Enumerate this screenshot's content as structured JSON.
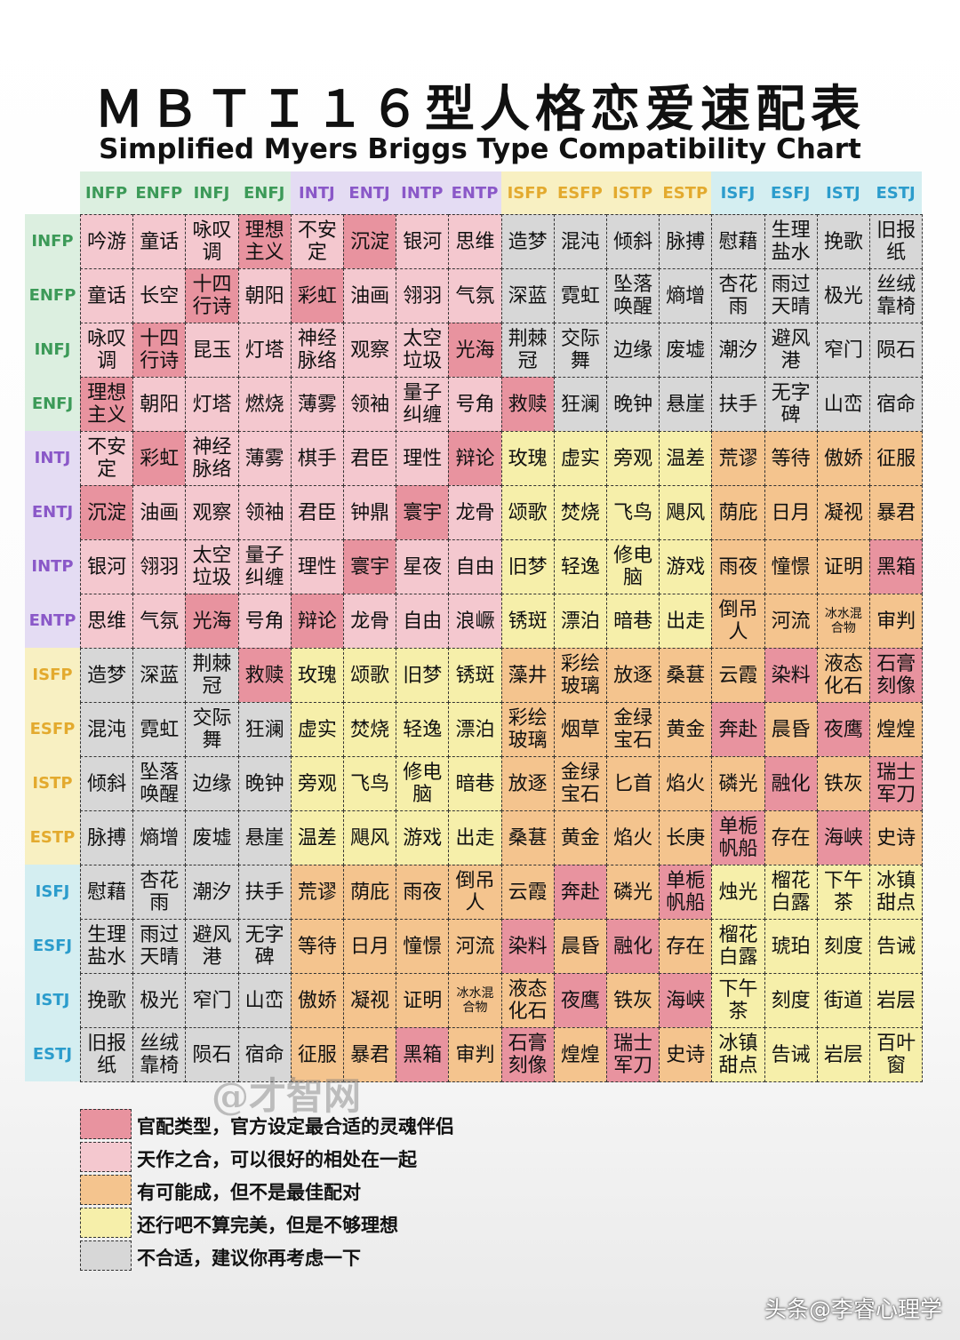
{
  "title": "ＭＢＴＩ１６型人格恋爱速配表",
  "subtitle": "Simplified Myers Briggs Type Compatibility Chart",
  "types": [
    "INFP",
    "ENFP",
    "INFJ",
    "ENFJ",
    "INTJ",
    "ENTJ",
    "INTP",
    "ENTP",
    "ISFP",
    "ESFP",
    "ISTP",
    "ESTP",
    "ISFJ",
    "ESFJ",
    "ISTJ",
    "ESTJ"
  ],
  "group_colors": {
    "nf": {
      "band": "#dcefe0",
      "text": "#3c9a58"
    },
    "nt": {
      "band": "#e4dcf3",
      "text": "#8a58c8"
    },
    "sp": {
      "band": "#f8f0c2",
      "text": "#e3aa2e"
    },
    "sj": {
      "band": "#d4eef1",
      "text": "#2b9ccc"
    }
  },
  "level_colors": {
    "1": "#e8939f",
    "2": "#f4c8cf",
    "3": "#f4c48e",
    "4": "#f6efaa",
    "5": "#d7d7d7"
  },
  "grid": [
    [
      "吟游",
      "童话",
      "咏叹调",
      "理想主义",
      "不安定",
      "沉淀",
      "银河",
      "思维",
      "造梦",
      "混沌",
      "倾斜",
      "脉搏",
      "慰藉",
      "生理盐水",
      "挽歌",
      "旧报纸"
    ],
    [
      "童话",
      "长空",
      "十四行诗",
      "朝阳",
      "彩虹",
      "油画",
      "翎羽",
      "气氛",
      "深蓝",
      "霓虹",
      "坠落唤醒",
      "熵增",
      "杏花雨",
      "雨过天晴",
      "极光",
      "丝绒靠椅"
    ],
    [
      "咏叹调",
      "十四行诗",
      "昆玉",
      "灯塔",
      "神经脉络",
      "观察",
      "太空垃圾",
      "光海",
      "荆棘冠",
      "交际舞",
      "边缘",
      "废墟",
      "潮汐",
      "避风港",
      "窄门",
      "陨石"
    ],
    [
      "理想主义",
      "朝阳",
      "灯塔",
      "燃烧",
      "薄雾",
      "领袖",
      "量子纠缠",
      "号角",
      "救赎",
      "狂澜",
      "晚钟",
      "悬崖",
      "扶手",
      "无字碑",
      "山峦",
      "宿命"
    ],
    [
      "不安定",
      "彩虹",
      "神经脉络",
      "薄雾",
      "棋手",
      "君臣",
      "理性",
      "辩论",
      "玫瑰",
      "虚实",
      "旁观",
      "温差",
      "荒谬",
      "等待",
      "傲娇",
      "征服"
    ],
    [
      "沉淀",
      "油画",
      "观察",
      "领袖",
      "君臣",
      "钟鼎",
      "寰宇",
      "龙骨",
      "颂歌",
      "焚烧",
      "飞鸟",
      "飓风",
      "荫庇",
      "日月",
      "凝视",
      "暴君"
    ],
    [
      "银河",
      "翎羽",
      "太空垃圾",
      "量子纠缠",
      "理性",
      "寰宇",
      "星夜",
      "自由",
      "旧梦",
      "轻逸",
      "修电脑",
      "游戏",
      "雨夜",
      "憧憬",
      "证明",
      "黑箱"
    ],
    [
      "思维",
      "气氛",
      "光海",
      "号角",
      "辩论",
      "龙骨",
      "自由",
      "浪嶥",
      "锈斑",
      "漂泊",
      "暗巷",
      "出走",
      "倒吊人",
      "河流",
      "冰水混合物",
      "审判"
    ],
    [
      "造梦",
      "深蓝",
      "荆棘冠",
      "救赎",
      "玫瑰",
      "颂歌",
      "旧梦",
      "锈斑",
      "藻井",
      "彩绘玻璃",
      "放逐",
      "桑葚",
      "云霞",
      "染料",
      "液态化石",
      "石膏刻像"
    ],
    [
      "混沌",
      "霓虹",
      "交际舞",
      "狂澜",
      "虚实",
      "焚烧",
      "轻逸",
      "漂泊",
      "彩绘玻璃",
      "烟草",
      "金绿宝石",
      "黄金",
      "奔赴",
      "晨昏",
      "夜鹰",
      "煌煌"
    ],
    [
      "倾斜",
      "坠落唤醒",
      "边缘",
      "晚钟",
      "旁观",
      "飞鸟",
      "修电脑",
      "暗巷",
      "放逐",
      "金绿宝石",
      "匕首",
      "焰火",
      "磷光",
      "融化",
      "铁灰",
      "瑞士军刀"
    ],
    [
      "脉搏",
      "熵增",
      "废墟",
      "悬崖",
      "温差",
      "飓风",
      "游戏",
      "出走",
      "桑葚",
      "黄金",
      "焰火",
      "长庚",
      "单栀帆船",
      "存在",
      "海峡",
      "史诗"
    ],
    [
      "慰藉",
      "杏花雨",
      "潮汐",
      "扶手",
      "荒谬",
      "荫庇",
      "雨夜",
      "倒吊人",
      "云霞",
      "奔赴",
      "磷光",
      "单栀帆船",
      "烛光",
      "榴花白露",
      "下午茶",
      "冰镇甜点"
    ],
    [
      "生理盐水",
      "雨过天晴",
      "避风港",
      "无字碑",
      "等待",
      "日月",
      "憧憬",
      "河流",
      "染料",
      "晨昏",
      "融化",
      "存在",
      "榴花白露",
      "琥珀",
      "刻度",
      "告诫"
    ],
    [
      "挽歌",
      "极光",
      "窄门",
      "山峦",
      "傲娇",
      "凝视",
      "证明",
      "冰水混合物",
      "液态化石",
      "夜鹰",
      "铁灰",
      "海峡",
      "下午茶",
      "刻度",
      "街道",
      "岩层"
    ],
    [
      "旧报纸",
      "丝绒靠椅",
      "陨石",
      "宿命",
      "征服",
      "暴君",
      "黑箱",
      "审判",
      "石膏刻像",
      "煌煌",
      "瑞士军刀",
      "史诗",
      "冰镇甜点",
      "告诫",
      "岩层",
      "百叶窗"
    ]
  ],
  "levels": [
    [
      2,
      2,
      2,
      1,
      2,
      1,
      2,
      2,
      5,
      5,
      5,
      5,
      5,
      5,
      5,
      5
    ],
    [
      2,
      2,
      1,
      2,
      1,
      2,
      2,
      2,
      5,
      5,
      5,
      5,
      5,
      5,
      5,
      5
    ],
    [
      2,
      1,
      2,
      2,
      2,
      2,
      2,
      1,
      5,
      5,
      5,
      5,
      5,
      5,
      5,
      5
    ],
    [
      1,
      2,
      2,
      2,
      2,
      2,
      2,
      2,
      1,
      5,
      5,
      5,
      5,
      5,
      5,
      5
    ],
    [
      2,
      1,
      2,
      2,
      2,
      2,
      2,
      1,
      4,
      4,
      4,
      4,
      3,
      3,
      3,
      3
    ],
    [
      1,
      2,
      2,
      2,
      2,
      2,
      1,
      2,
      4,
      4,
      4,
      4,
      3,
      3,
      3,
      3
    ],
    [
      2,
      2,
      2,
      2,
      2,
      1,
      2,
      2,
      4,
      4,
      4,
      4,
      3,
      3,
      3,
      1
    ],
    [
      2,
      2,
      1,
      2,
      1,
      2,
      2,
      2,
      4,
      4,
      4,
      4,
      3,
      3,
      3,
      3
    ],
    [
      5,
      5,
      5,
      1,
      4,
      4,
      4,
      4,
      3,
      3,
      3,
      3,
      3,
      1,
      3,
      1
    ],
    [
      5,
      5,
      5,
      5,
      4,
      4,
      4,
      4,
      3,
      3,
      3,
      3,
      1,
      3,
      1,
      3
    ],
    [
      5,
      5,
      5,
      5,
      4,
      4,
      4,
      4,
      3,
      3,
      3,
      3,
      3,
      1,
      3,
      1
    ],
    [
      5,
      5,
      5,
      5,
      4,
      4,
      4,
      4,
      3,
      3,
      3,
      3,
      1,
      3,
      1,
      3
    ],
    [
      5,
      5,
      5,
      5,
      3,
      3,
      3,
      3,
      3,
      1,
      3,
      1,
      4,
      4,
      4,
      4
    ],
    [
      5,
      5,
      5,
      5,
      3,
      3,
      3,
      3,
      1,
      3,
      1,
      3,
      4,
      4,
      4,
      4
    ],
    [
      5,
      5,
      5,
      5,
      3,
      3,
      3,
      3,
      3,
      1,
      3,
      1,
      4,
      4,
      4,
      4
    ],
    [
      5,
      5,
      5,
      5,
      3,
      3,
      1,
      3,
      1,
      3,
      1,
      3,
      4,
      4,
      4,
      4
    ]
  ],
  "legend": [
    {
      "level": 1,
      "text": "官配类型，官方设定最合适的灵魂伴侣"
    },
    {
      "level": 2,
      "text": "天作之合，可以很好的相处在一起"
    },
    {
      "level": 3,
      "text": "有可能成，但不是最佳配对"
    },
    {
      "level": 4,
      "text": "还行吧不算完美，但是不够理想"
    },
    {
      "level": 5,
      "text": "不合适，建议你再考虑一下"
    }
  ],
  "watermarks": {
    "center": "@才智网",
    "corner": "头条@李睿心理学"
  }
}
